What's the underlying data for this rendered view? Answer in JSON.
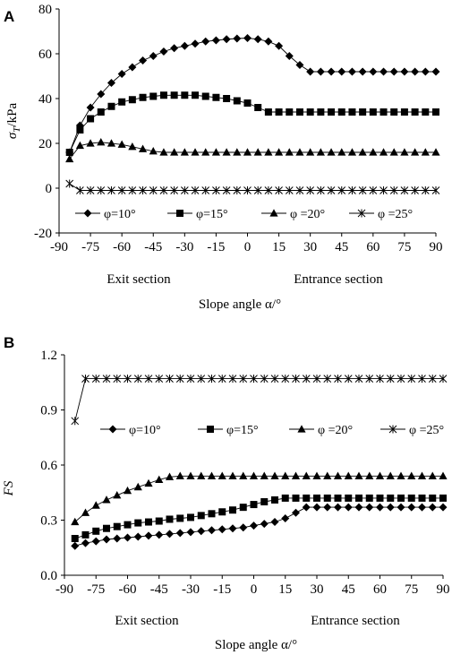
{
  "chart_data": [
    {
      "type": "line",
      "panel": "A",
      "ylabel": "σT/kPa",
      "xlabel": "Slope angle α/°",
      "section_labels": [
        "Exit section",
        "Entrance section"
      ],
      "xlim": [
        -90,
        90
      ],
      "ylim": [
        -20,
        80
      ],
      "x_ticks": [
        "-90",
        "-75",
        "-60",
        "-45",
        "-30",
        "-15",
        "0",
        "15",
        "30",
        "45",
        "60",
        "75",
        "90"
      ],
      "y_ticks": [
        "80",
        "60",
        "40",
        "20",
        "0",
        "-20"
      ],
      "grid": false,
      "legend_position": "bottom",
      "legend": [
        "φ=10°",
        "φ=15°",
        "φ =20°",
        "φ =25°"
      ],
      "x": [
        -85,
        -80,
        -75,
        -70,
        -65,
        -60,
        -55,
        -50,
        -45,
        -40,
        -35,
        -30,
        -25,
        -20,
        -15,
        -10,
        -5,
        0,
        5,
        10,
        15,
        20,
        25,
        30,
        35,
        40,
        45,
        50,
        55,
        60,
        65,
        70,
        75,
        80,
        85,
        90
      ],
      "series": [
        {
          "name": "φ=10°",
          "marker": "diamond",
          "values": [
            16,
            28,
            36,
            42,
            47,
            51,
            54,
            57,
            59,
            61,
            62.5,
            63.5,
            64.5,
            65.5,
            66,
            66.5,
            66.8,
            67,
            66.5,
            65.5,
            63.5,
            59,
            55,
            52,
            52,
            52,
            52,
            52,
            52,
            52,
            52,
            52,
            52,
            52,
            52,
            52
          ]
        },
        {
          "name": "φ=15°",
          "marker": "square",
          "values": [
            16,
            26,
            31,
            34,
            36.5,
            38.5,
            39.5,
            40.5,
            41,
            41.5,
            41.5,
            41.5,
            41.5,
            41,
            40.5,
            40,
            39,
            38,
            36,
            34,
            34,
            34,
            34,
            34,
            34,
            34,
            34,
            34,
            34,
            34,
            34,
            34,
            34,
            34,
            34,
            34
          ]
        },
        {
          "name": "φ =20°",
          "marker": "triangle",
          "values": [
            13,
            19,
            20,
            20.5,
            20,
            19.5,
            18.5,
            17.5,
            16.5,
            16,
            16,
            16,
            16,
            16,
            16,
            16,
            16,
            16,
            16,
            16,
            16,
            16,
            16,
            16,
            16,
            16,
            16,
            16,
            16,
            16,
            16,
            16,
            16,
            16,
            16,
            16
          ]
        },
        {
          "name": "φ =25°",
          "marker": "star",
          "values": [
            2,
            -1,
            -1,
            -1,
            -1,
            -1,
            -1,
            -1,
            -1,
            -1,
            -1,
            -1,
            -1,
            -1,
            -1,
            -1,
            -1,
            -1,
            -1,
            -1,
            -1,
            -1,
            -1,
            -1,
            -1,
            -1,
            -1,
            -1,
            -1,
            -1,
            -1,
            -1,
            -1,
            -1,
            -1,
            -1
          ]
        }
      ]
    },
    {
      "type": "line",
      "panel": "B",
      "ylabel": "FS",
      "xlabel": "Slope angle α/°",
      "section_labels": [
        "Exit section",
        "Entrance section"
      ],
      "xlim": [
        -90,
        90
      ],
      "ylim": [
        0,
        1.2
      ],
      "x_ticks": [
        "-90",
        "-75",
        "-60",
        "-45",
        "-30",
        "-15",
        "0",
        "15",
        "30",
        "45",
        "60",
        "75",
        "90"
      ],
      "y_ticks": [
        "1.2",
        "0.9",
        "0.6",
        "0.3",
        "0.0"
      ],
      "grid": false,
      "legend_position": "middle",
      "legend": [
        "φ=10°",
        "φ=15°",
        "φ =20°",
        "φ =25°"
      ],
      "x": [
        -85,
        -80,
        -75,
        -70,
        -65,
        -60,
        -55,
        -50,
        -45,
        -40,
        -35,
        -30,
        -25,
        -20,
        -15,
        -10,
        -5,
        0,
        5,
        10,
        15,
        20,
        25,
        30,
        35,
        40,
        45,
        50,
        55,
        60,
        65,
        70,
        75,
        80,
        85,
        90
      ],
      "series": [
        {
          "name": "φ=10°",
          "marker": "diamond",
          "values": [
            0.16,
            0.175,
            0.185,
            0.195,
            0.2,
            0.205,
            0.21,
            0.215,
            0.22,
            0.225,
            0.23,
            0.235,
            0.24,
            0.245,
            0.25,
            0.255,
            0.26,
            0.27,
            0.28,
            0.29,
            0.31,
            0.34,
            0.37,
            0.37,
            0.37,
            0.37,
            0.37,
            0.37,
            0.37,
            0.37,
            0.37,
            0.37,
            0.37,
            0.37,
            0.37,
            0.37
          ]
        },
        {
          "name": "φ=15°",
          "marker": "square",
          "values": [
            0.2,
            0.22,
            0.24,
            0.255,
            0.265,
            0.275,
            0.285,
            0.29,
            0.295,
            0.305,
            0.31,
            0.315,
            0.325,
            0.335,
            0.345,
            0.355,
            0.37,
            0.385,
            0.4,
            0.41,
            0.42,
            0.42,
            0.42,
            0.42,
            0.42,
            0.42,
            0.42,
            0.42,
            0.42,
            0.42,
            0.42,
            0.42,
            0.42,
            0.42,
            0.42,
            0.42
          ]
        },
        {
          "name": "φ =20°",
          "marker": "triangle",
          "values": [
            0.29,
            0.34,
            0.38,
            0.41,
            0.435,
            0.46,
            0.48,
            0.5,
            0.52,
            0.535,
            0.54,
            0.54,
            0.54,
            0.54,
            0.54,
            0.54,
            0.54,
            0.54,
            0.54,
            0.54,
            0.54,
            0.54,
            0.54,
            0.54,
            0.54,
            0.54,
            0.54,
            0.54,
            0.54,
            0.54,
            0.54,
            0.54,
            0.54,
            0.54,
            0.54,
            0.54
          ]
        },
        {
          "name": "φ =25°",
          "marker": "star",
          "values": [
            0.84,
            1.07,
            1.07,
            1.07,
            1.07,
            1.07,
            1.07,
            1.07,
            1.07,
            1.07,
            1.07,
            1.07,
            1.07,
            1.07,
            1.07,
            1.07,
            1.07,
            1.07,
            1.07,
            1.07,
            1.07,
            1.07,
            1.07,
            1.07,
            1.07,
            1.07,
            1.07,
            1.07,
            1.07,
            1.07,
            1.07,
            1.07,
            1.07,
            1.07,
            1.07,
            1.07
          ]
        }
      ]
    }
  ]
}
